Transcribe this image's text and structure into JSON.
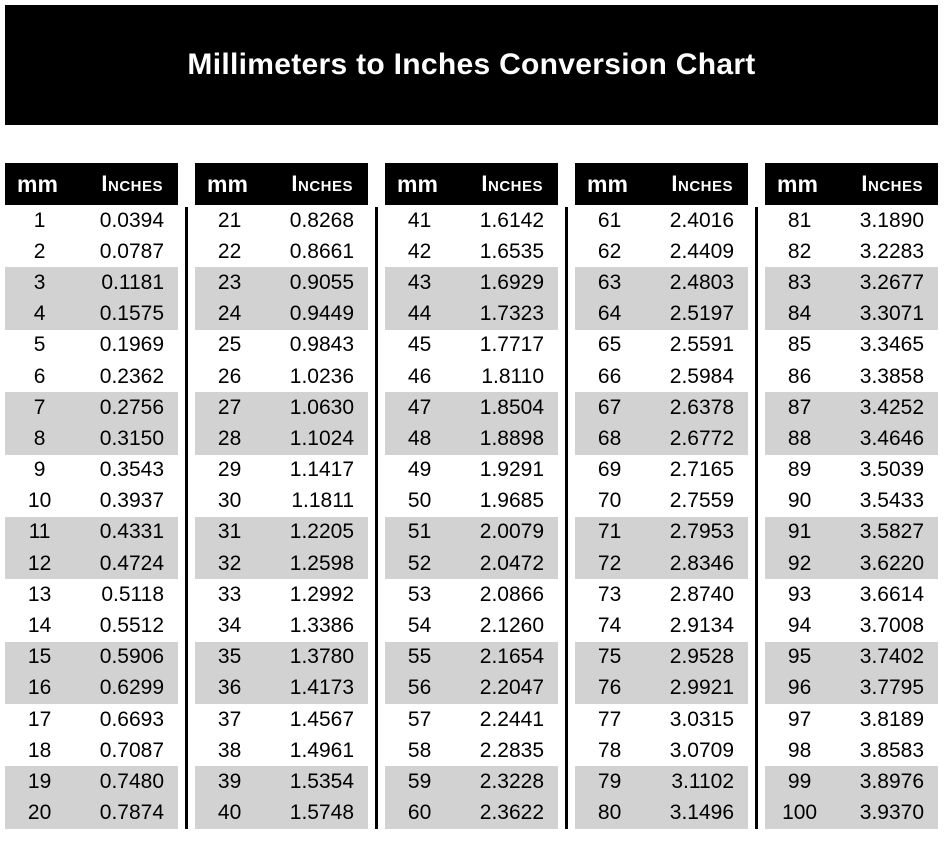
{
  "title": "Millimeters to Inches Conversion Chart",
  "columns": {
    "mm": "mm",
    "inches": "Inches"
  },
  "colors": {
    "banner_bg": "#000000",
    "banner_text": "#ffffff",
    "header_bg": "#000000",
    "header_text": "#ffffff",
    "row_shade": "#d2d2d2",
    "row_plain": "#ffffff",
    "body_text": "#000000",
    "divider": "#000000"
  },
  "chart_data": {
    "type": "table",
    "title": "Millimeters to Inches Conversion Chart",
    "column_headers": [
      "mm",
      "Inches"
    ],
    "layout": {
      "column_groups": 5,
      "rows_per_group": 20,
      "shading": "rows shaded gray in alternating pairs (rows 3-4, 7-8, 11-12, 15-16, 19-20 of each group)",
      "dividers": "vertical black rule between column groups, starting below headers"
    },
    "groups": [
      {
        "rows": [
          [
            1,
            "0.0394"
          ],
          [
            2,
            "0.0787"
          ],
          [
            3,
            "0.1181"
          ],
          [
            4,
            "0.1575"
          ],
          [
            5,
            "0.1969"
          ],
          [
            6,
            "0.2362"
          ],
          [
            7,
            "0.2756"
          ],
          [
            8,
            "0.3150"
          ],
          [
            9,
            "0.3543"
          ],
          [
            10,
            "0.3937"
          ],
          [
            11,
            "0.4331"
          ],
          [
            12,
            "0.4724"
          ],
          [
            13,
            "0.5118"
          ],
          [
            14,
            "0.5512"
          ],
          [
            15,
            "0.5906"
          ],
          [
            16,
            "0.6299"
          ],
          [
            17,
            "0.6693"
          ],
          [
            18,
            "0.7087"
          ],
          [
            19,
            "0.7480"
          ],
          [
            20,
            "0.7874"
          ]
        ]
      },
      {
        "rows": [
          [
            21,
            "0.8268"
          ],
          [
            22,
            "0.8661"
          ],
          [
            23,
            "0.9055"
          ],
          [
            24,
            "0.9449"
          ],
          [
            25,
            "0.9843"
          ],
          [
            26,
            "1.0236"
          ],
          [
            27,
            "1.0630"
          ],
          [
            28,
            "1.1024"
          ],
          [
            29,
            "1.1417"
          ],
          [
            30,
            "1.1811"
          ],
          [
            31,
            "1.2205"
          ],
          [
            32,
            "1.2598"
          ],
          [
            33,
            "1.2992"
          ],
          [
            34,
            "1.3386"
          ],
          [
            35,
            "1.3780"
          ],
          [
            36,
            "1.4173"
          ],
          [
            37,
            "1.4567"
          ],
          [
            38,
            "1.4961"
          ],
          [
            39,
            "1.5354"
          ],
          [
            40,
            "1.5748"
          ]
        ]
      },
      {
        "rows": [
          [
            41,
            "1.6142"
          ],
          [
            42,
            "1.6535"
          ],
          [
            43,
            "1.6929"
          ],
          [
            44,
            "1.7323"
          ],
          [
            45,
            "1.7717"
          ],
          [
            46,
            "1.8110"
          ],
          [
            47,
            "1.8504"
          ],
          [
            48,
            "1.8898"
          ],
          [
            49,
            "1.9291"
          ],
          [
            50,
            "1.9685"
          ],
          [
            51,
            "2.0079"
          ],
          [
            52,
            "2.0472"
          ],
          [
            53,
            "2.0866"
          ],
          [
            54,
            "2.1260"
          ],
          [
            55,
            "2.1654"
          ],
          [
            56,
            "2.2047"
          ],
          [
            57,
            "2.2441"
          ],
          [
            58,
            "2.2835"
          ],
          [
            59,
            "2.3228"
          ],
          [
            60,
            "2.3622"
          ]
        ]
      },
      {
        "rows": [
          [
            61,
            "2.4016"
          ],
          [
            62,
            "2.4409"
          ],
          [
            63,
            "2.4803"
          ],
          [
            64,
            "2.5197"
          ],
          [
            65,
            "2.5591"
          ],
          [
            66,
            "2.5984"
          ],
          [
            67,
            "2.6378"
          ],
          [
            68,
            "2.6772"
          ],
          [
            69,
            "2.7165"
          ],
          [
            70,
            "2.7559"
          ],
          [
            71,
            "2.7953"
          ],
          [
            72,
            "2.8346"
          ],
          [
            73,
            "2.8740"
          ],
          [
            74,
            "2.9134"
          ],
          [
            75,
            "2.9528"
          ],
          [
            76,
            "2.9921"
          ],
          [
            77,
            "3.0315"
          ],
          [
            78,
            "3.0709"
          ],
          [
            79,
            "3.1102"
          ],
          [
            80,
            "3.1496"
          ]
        ]
      },
      {
        "rows": [
          [
            81,
            "3.1890"
          ],
          [
            82,
            "3.2283"
          ],
          [
            83,
            "3.2677"
          ],
          [
            84,
            "3.3071"
          ],
          [
            85,
            "3.3465"
          ],
          [
            86,
            "3.3858"
          ],
          [
            87,
            "3.4252"
          ],
          [
            88,
            "3.4646"
          ],
          [
            89,
            "3.5039"
          ],
          [
            90,
            "3.5433"
          ],
          [
            91,
            "3.5827"
          ],
          [
            92,
            "3.6220"
          ],
          [
            93,
            "3.6614"
          ],
          [
            94,
            "3.7008"
          ],
          [
            95,
            "3.7402"
          ],
          [
            96,
            "3.7795"
          ],
          [
            97,
            "3.8189"
          ],
          [
            98,
            "3.8583"
          ],
          [
            99,
            "3.8976"
          ],
          [
            100,
            "3.9370"
          ]
        ]
      }
    ]
  }
}
